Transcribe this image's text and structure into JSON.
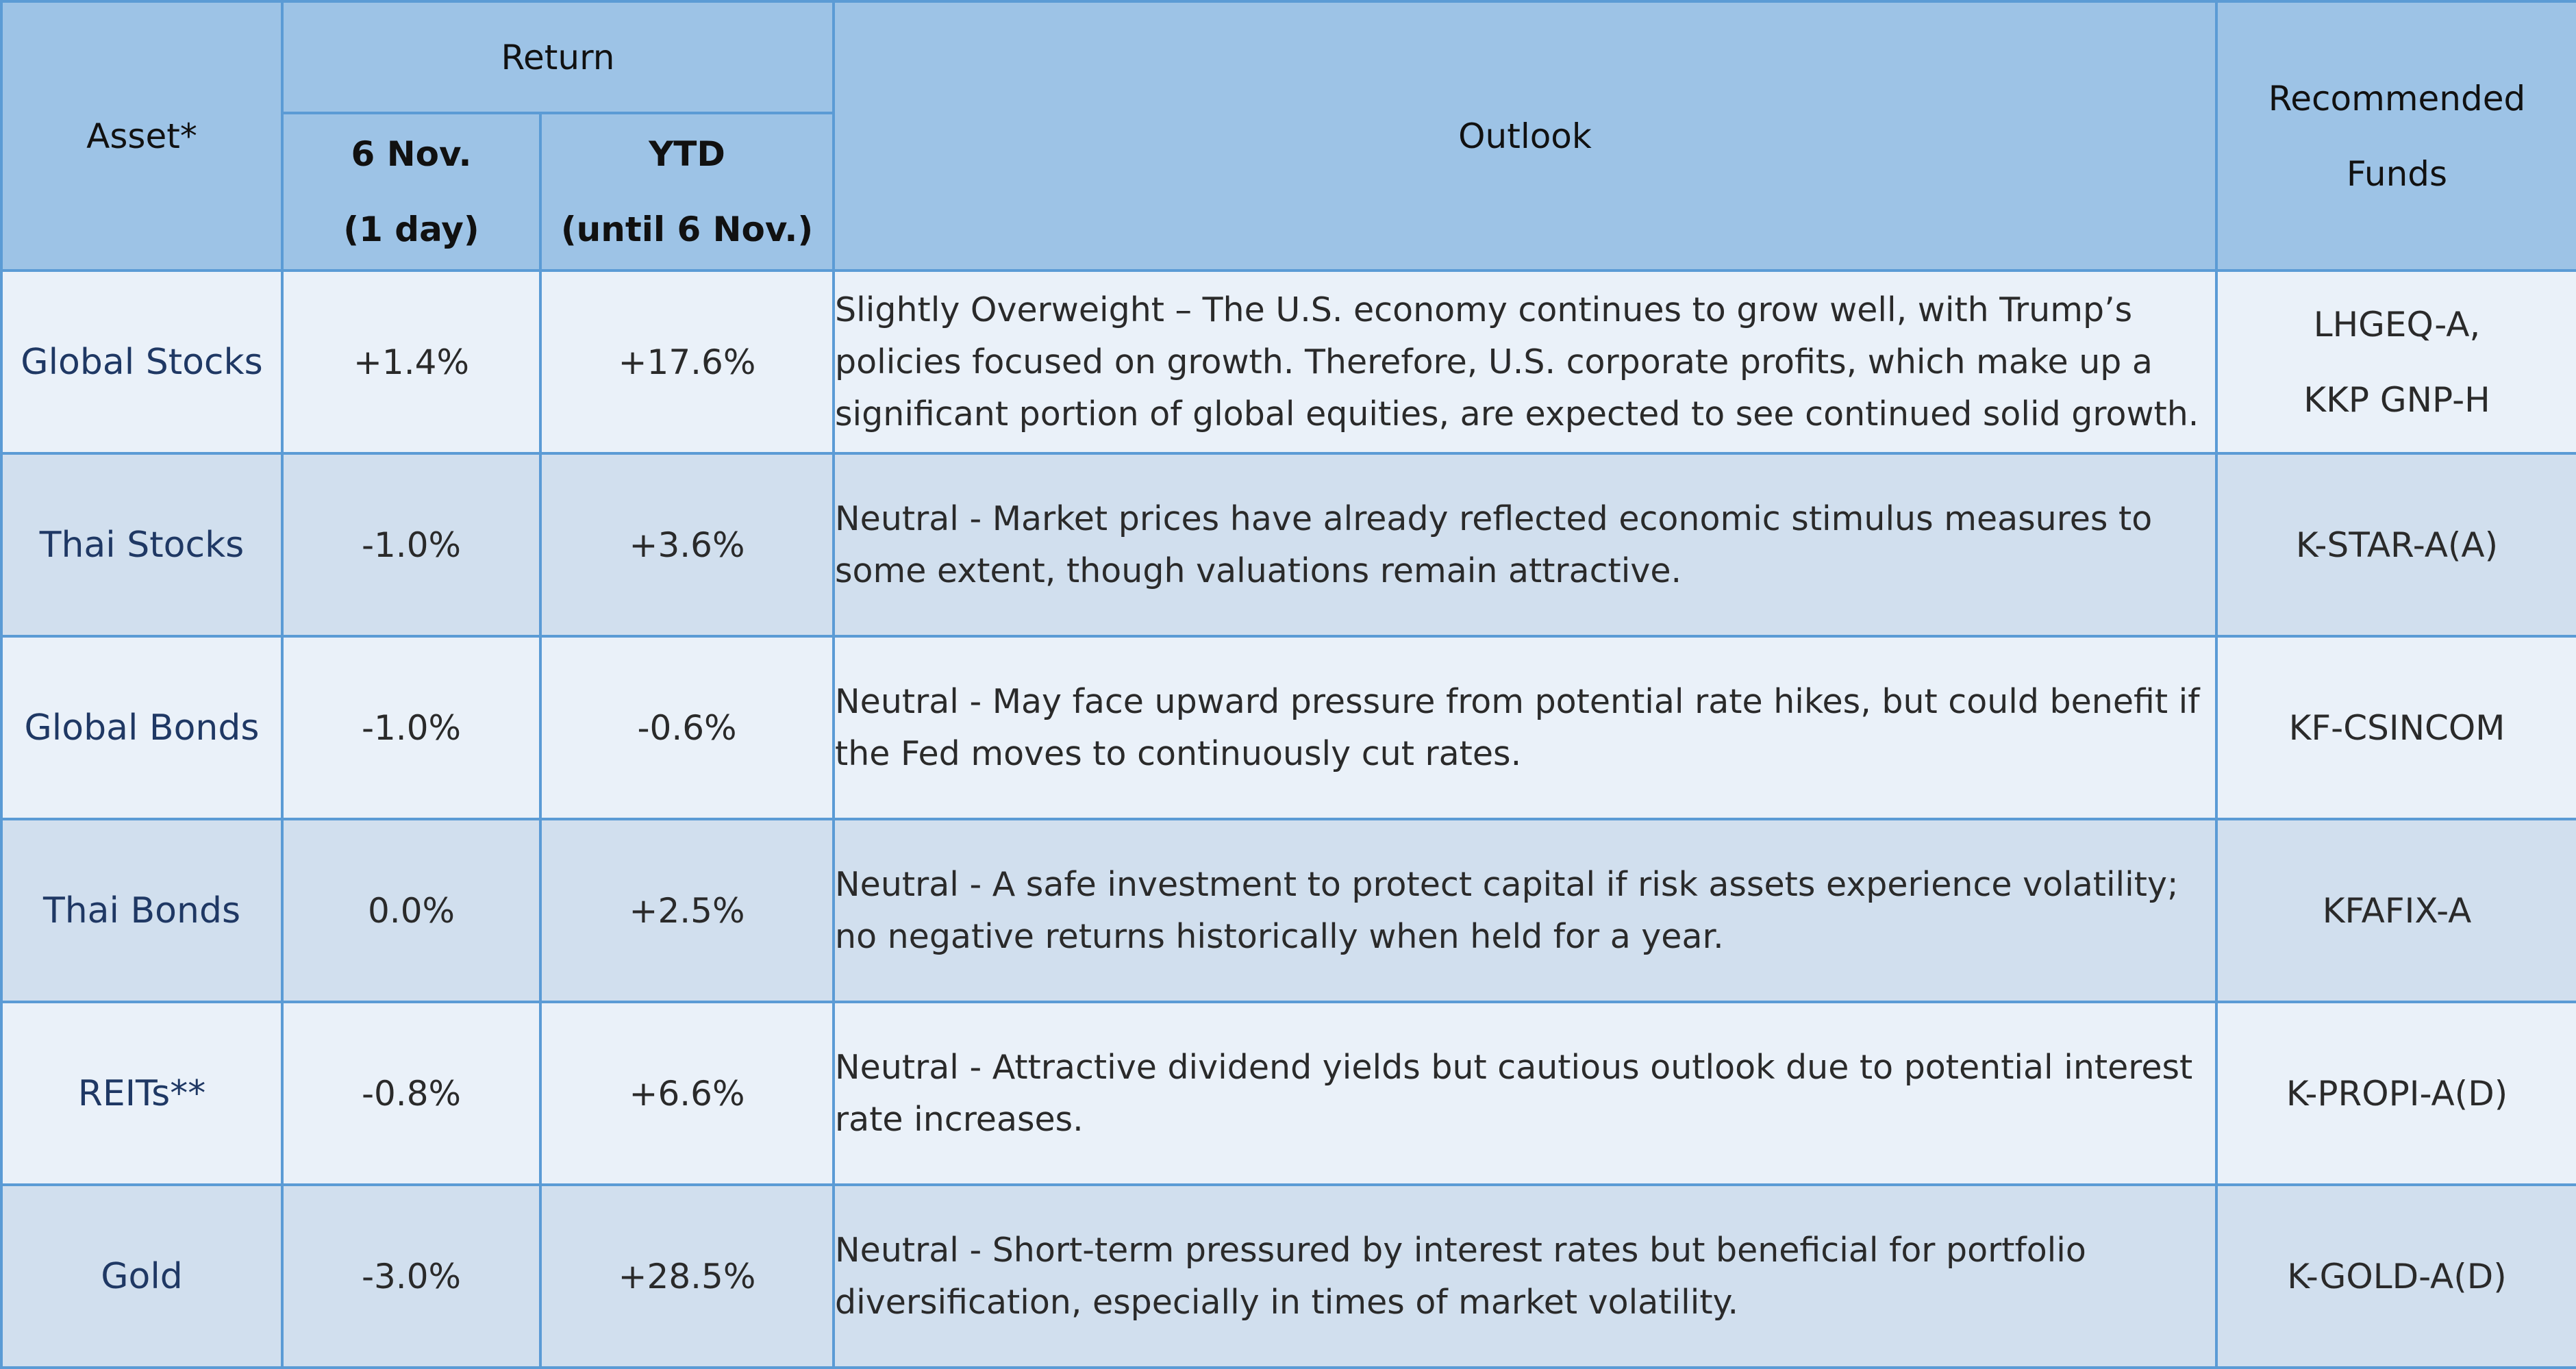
{
  "headers": {
    "asset": "Asset*",
    "return": "Return",
    "day_line1": "6 Nov.",
    "day_line2": "(1 day)",
    "ytd_line1": "YTD",
    "ytd_line2": "(until 6 Nov.)",
    "outlook": "Outlook",
    "funds_line1": "Recommended",
    "funds_line2": "Funds"
  },
  "rows": [
    {
      "asset": "Global Stocks",
      "day": "+1.4%",
      "ytd": "+17.6%",
      "outlook": "Slightly Overweight – The U.S. economy continues to grow well, with Trump’s policies focused on growth. Therefore, U.S. corporate profits, which make up a significant portion of global equities, are expected to see continued solid growth.",
      "fund_line1": "LHGEQ-A,",
      "fund_line2": "KKP GNP-H"
    },
    {
      "asset": "Thai Stocks",
      "day": "-1.0%",
      "ytd": "+3.6%",
      "outlook": "Neutral - Market prices have already reflected economic stimulus measures to some extent, though valuations remain attractive.",
      "fund_line1": "K-STAR-A(A)",
      "fund_line2": ""
    },
    {
      "asset": "Global Bonds",
      "day": "-1.0%",
      "ytd": "-0.6%",
      "outlook": "Neutral - May face upward pressure from potential rate hikes, but could benefit if the Fed moves to continuously cut rates.",
      "fund_line1": "KF-CSINCOM",
      "fund_line2": ""
    },
    {
      "asset": "Thai Bonds",
      "day": "0.0%",
      "ytd": "+2.5%",
      "outlook": "Neutral - A safe investment to protect capital if risk assets experience volatility; no negative returns historically when held for a year.",
      "fund_line1": "KFAFIX-A",
      "fund_line2": ""
    },
    {
      "asset": "REITs**",
      "day": "-0.8%",
      "ytd": "+6.6%",
      "outlook": "Neutral - Attractive dividend yields but cautious outlook due to potential interest rate increases.",
      "fund_line1": "K-PROPI-A(D)",
      "fund_line2": ""
    },
    {
      "asset": "Gold",
      "day": "-3.0%",
      "ytd": "+28.5%",
      "outlook": "Neutral - Short-term pressured by interest rates but beneficial for portfolio diversification, especially in times of market volatility.",
      "fund_line1": "K-GOLD-A(D)",
      "fund_line2": ""
    }
  ]
}
